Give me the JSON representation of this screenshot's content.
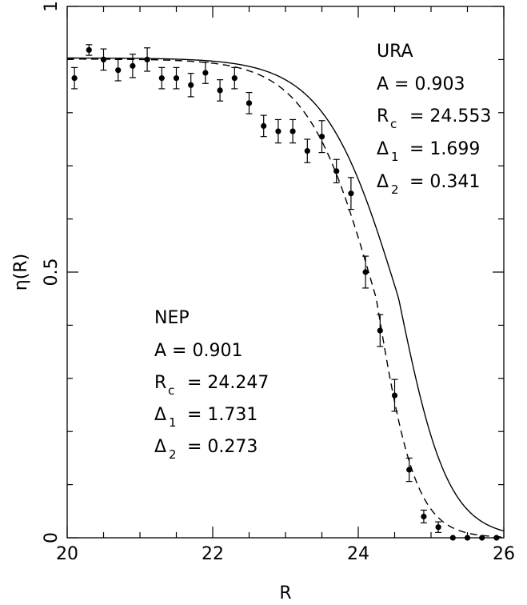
{
  "chart_data": {
    "type": "scatter",
    "xlabel": "R",
    "ylabel": "η(R)",
    "xlim": [
      20,
      26
    ],
    "ylim": [
      0,
      1
    ],
    "x_ticks": [
      20,
      22,
      24,
      26
    ],
    "x_tick_labels": [
      "20",
      "22",
      "24",
      "26"
    ],
    "y_ticks": [
      0,
      0.5,
      1
    ],
    "y_tick_labels": [
      "0",
      "0.5",
      "1"
    ],
    "grid": false,
    "points": [
      {
        "x": 20.1,
        "y": 0.865,
        "err": 0.02
      },
      {
        "x": 20.3,
        "y": 0.918,
        "err": 0.01
      },
      {
        "x": 20.5,
        "y": 0.9,
        "err": 0.02
      },
      {
        "x": 20.7,
        "y": 0.88,
        "err": 0.02
      },
      {
        "x": 20.9,
        "y": 0.888,
        "err": 0.022
      },
      {
        "x": 21.1,
        "y": 0.9,
        "err": 0.022
      },
      {
        "x": 21.3,
        "y": 0.865,
        "err": 0.02
      },
      {
        "x": 21.5,
        "y": 0.865,
        "err": 0.02
      },
      {
        "x": 21.7,
        "y": 0.852,
        "err": 0.022
      },
      {
        "x": 21.9,
        "y": 0.875,
        "err": 0.02
      },
      {
        "x": 22.1,
        "y": 0.842,
        "err": 0.02
      },
      {
        "x": 22.3,
        "y": 0.865,
        "err": 0.02
      },
      {
        "x": 22.5,
        "y": 0.818,
        "err": 0.02
      },
      {
        "x": 22.7,
        "y": 0.775,
        "err": 0.02
      },
      {
        "x": 22.9,
        "y": 0.765,
        "err": 0.022
      },
      {
        "x": 23.1,
        "y": 0.765,
        "err": 0.022
      },
      {
        "x": 23.3,
        "y": 0.728,
        "err": 0.022
      },
      {
        "x": 23.5,
        "y": 0.755,
        "err": 0.03
      },
      {
        "x": 23.7,
        "y": 0.69,
        "err": 0.022
      },
      {
        "x": 23.9,
        "y": 0.648,
        "err": 0.03
      },
      {
        "x": 24.1,
        "y": 0.5,
        "err": 0.03
      },
      {
        "x": 24.3,
        "y": 0.39,
        "err": 0.03
      },
      {
        "x": 24.5,
        "y": 0.268,
        "err": 0.03
      },
      {
        "x": 24.7,
        "y": 0.128,
        "err": 0.022
      },
      {
        "x": 24.9,
        "y": 0.04,
        "err": 0.012
      },
      {
        "x": 25.1,
        "y": 0.02,
        "err": 0.01
      },
      {
        "x": 25.3,
        "y": 0.0,
        "err": 0
      },
      {
        "x": 25.5,
        "y": 0.0,
        "err": 0
      },
      {
        "x": 25.7,
        "y": 0.0,
        "err": 0
      },
      {
        "x": 25.9,
        "y": 0.0,
        "err": 0
      }
    ],
    "fits": [
      {
        "label": "URA",
        "style": "solid",
        "A": 0.903,
        "Rc": 24.553,
        "d1": 1.699,
        "d2": 0.341,
        "lines": [
          "URA",
          "A  =  0.903",
          "R",
          "c",
          "=  24.553",
          "Δ",
          "1",
          "=  1.699",
          "Δ",
          "2",
          "=  0.341"
        ]
      },
      {
        "label": "NEP",
        "style": "dashed",
        "A": 0.901,
        "Rc": 24.247,
        "d1": 1.731,
        "d2": 0.273,
        "lines": [
          "NEP",
          "A  =  0.901",
          "R",
          "c",
          "=  24.247",
          "Δ",
          "1",
          "=  1.731",
          "Δ",
          "2",
          "=  0.273"
        ]
      }
    ]
  }
}
